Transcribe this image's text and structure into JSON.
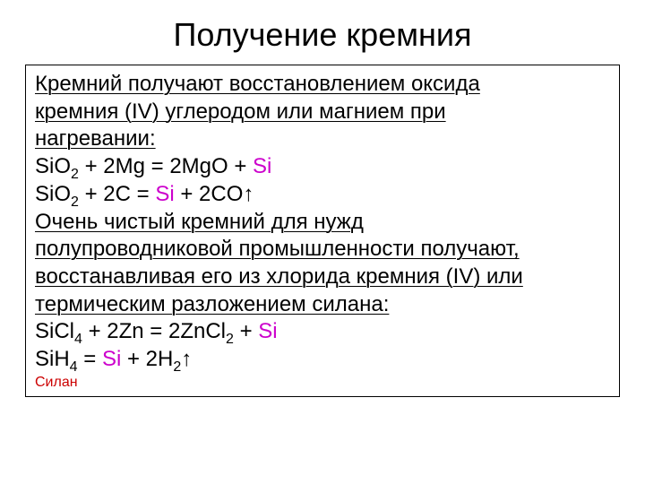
{
  "title": "Получение кремния",
  "para1_l1": "Кремний получают восстановлением оксида ",
  "para1_l2": "кремния (IV) углеродом или магнием при ",
  "para1_l3": "нагревании:",
  "eq1": {
    "a": "SiO",
    "a_sub": "2",
    "b": " + 2Mg = 2MgO + ",
    "si": "Si"
  },
  "eq2": {
    "a": "SiO",
    "a_sub": "2",
    "b": " + 2C = ",
    "si": "Si",
    "c": " + 2CO↑"
  },
  "para2_l1": "Очень чистый кремний для нужд ",
  "para2_l2": "полупроводниковой промышленности получают, ",
  "para2_l3": "восстанавливая его из хлорида кремния (IV) или ",
  "para2_l4": "термическим разложением силана:",
  "eq3": {
    "a": "SiCl",
    "a_sub": "4",
    "b": " + 2Zn = 2ZnCl",
    "b_sub": "2",
    "c": " + ",
    "si": "Si"
  },
  "eq4": {
    "a": "SiH",
    "a_sub": "4",
    "b": " = ",
    "si": "Si",
    "c": " + 2H",
    "c_sub": "2",
    "d": "↑"
  },
  "note": "Силан",
  "colors": {
    "si": "#cc00cc",
    "note": "#cc0000",
    "text": "#000000",
    "bg": "#ffffff",
    "border": "#000000"
  },
  "fonts": {
    "title_pt": 36,
    "body_pt": 24,
    "sub_pt": 16,
    "note_pt": 16
  }
}
